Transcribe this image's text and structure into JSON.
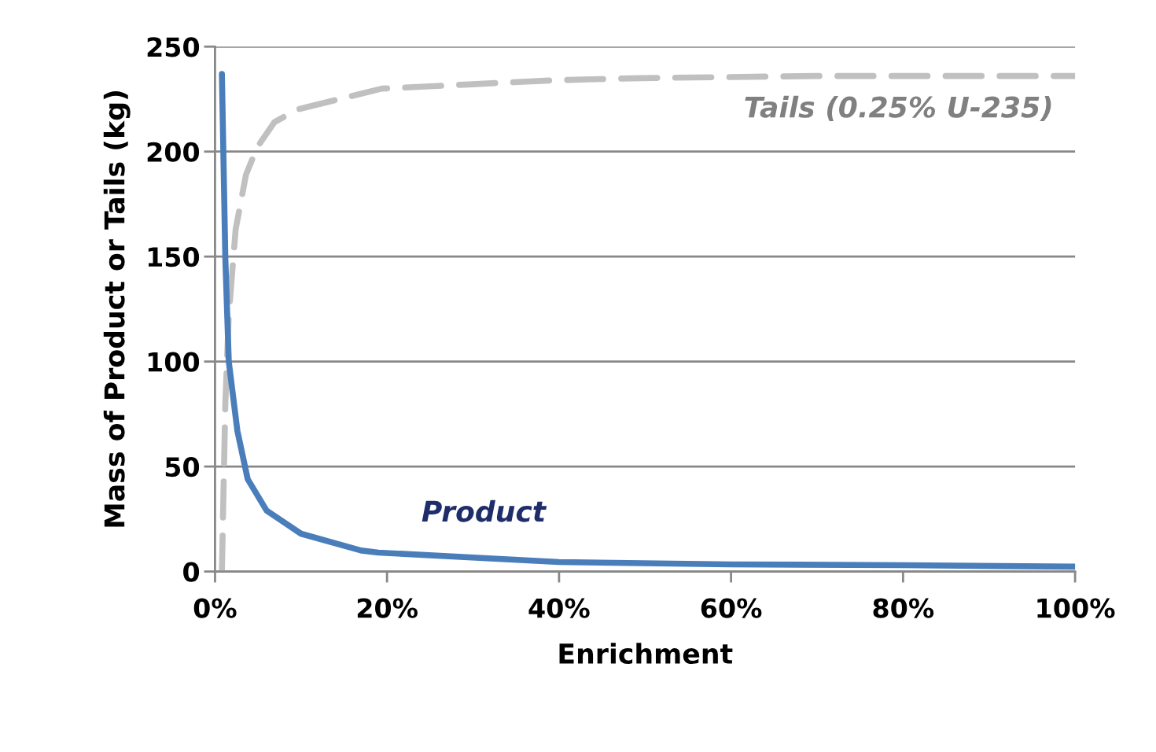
{
  "chart_data": {
    "type": "line",
    "xlabel": "Enrichment",
    "ylabel": "Mass of Product or Tails (kg)",
    "xlim": [
      0,
      100
    ],
    "ylim": [
      0,
      250
    ],
    "xticks": [
      {
        "value": 0,
        "label": "0%"
      },
      {
        "value": 20,
        "label": "20%"
      },
      {
        "value": 40,
        "label": "40%"
      },
      {
        "value": 60,
        "label": "60%"
      },
      {
        "value": 80,
        "label": "80%"
      },
      {
        "value": 100,
        "label": "100%"
      }
    ],
    "yticks": [
      0,
      50,
      100,
      150,
      200,
      250
    ],
    "grid": "y",
    "legend": false,
    "marker": "none",
    "series": [
      {
        "name": "Product",
        "color": "#4a7ebb",
        "line_style": "solid",
        "x": [
          0.8,
          1.2,
          1.6,
          2.6,
          3.8,
          6,
          10,
          17,
          19,
          40,
          60,
          80,
          100
        ],
        "values": [
          237,
          149,
          100,
          67,
          44,
          29,
          18,
          10,
          9,
          4.5,
          3.4,
          3,
          2.3
        ]
      },
      {
        "name": "Tails (0.25% U-235)",
        "color": "#c0c0c0",
        "line_style": "dashed",
        "x": [
          0.8,
          1.0,
          1.2,
          1.6,
          2.4,
          3.6,
          4.9,
          6.9,
          9.5,
          19.4,
          29.5,
          39.5,
          49.5,
          59.6,
          70,
          80,
          90,
          100
        ],
        "values": [
          0,
          41,
          80,
          122,
          163,
          189,
          202,
          214,
          220,
          230,
          232,
          234,
          235,
          235.5,
          236,
          236,
          236,
          236
        ]
      }
    ]
  }
}
